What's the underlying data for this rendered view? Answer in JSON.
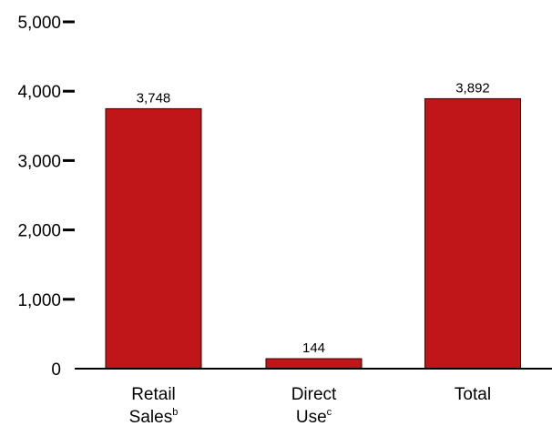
{
  "chart_data": {
    "type": "bar",
    "categories": [
      {
        "lines": [
          "Retail",
          "Sales"
        ],
        "superscript": "b"
      },
      {
        "lines": [
          "Direct",
          "Use"
        ],
        "superscript": "c"
      },
      {
        "lines": [
          "Total"
        ],
        "superscript": ""
      }
    ],
    "values": [
      3748,
      144,
      3892
    ],
    "data_labels": [
      "3,748",
      "144",
      "3,892"
    ],
    "yticks": [
      {
        "value": 0,
        "label": "0"
      },
      {
        "value": 1000,
        "label": "1,000"
      },
      {
        "value": 2000,
        "label": "2,000"
      },
      {
        "value": 3000,
        "label": "3,000"
      },
      {
        "value": 4000,
        "label": "4,000"
      },
      {
        "value": 5000,
        "label": "5,000"
      }
    ],
    "ylim": [
      0,
      5000
    ],
    "grid": false,
    "title": "",
    "xlabel": "",
    "ylabel": "",
    "colors": {
      "bar": "#c0161a",
      "bar_edge": "#3a0000",
      "axis": "#000000"
    }
  }
}
